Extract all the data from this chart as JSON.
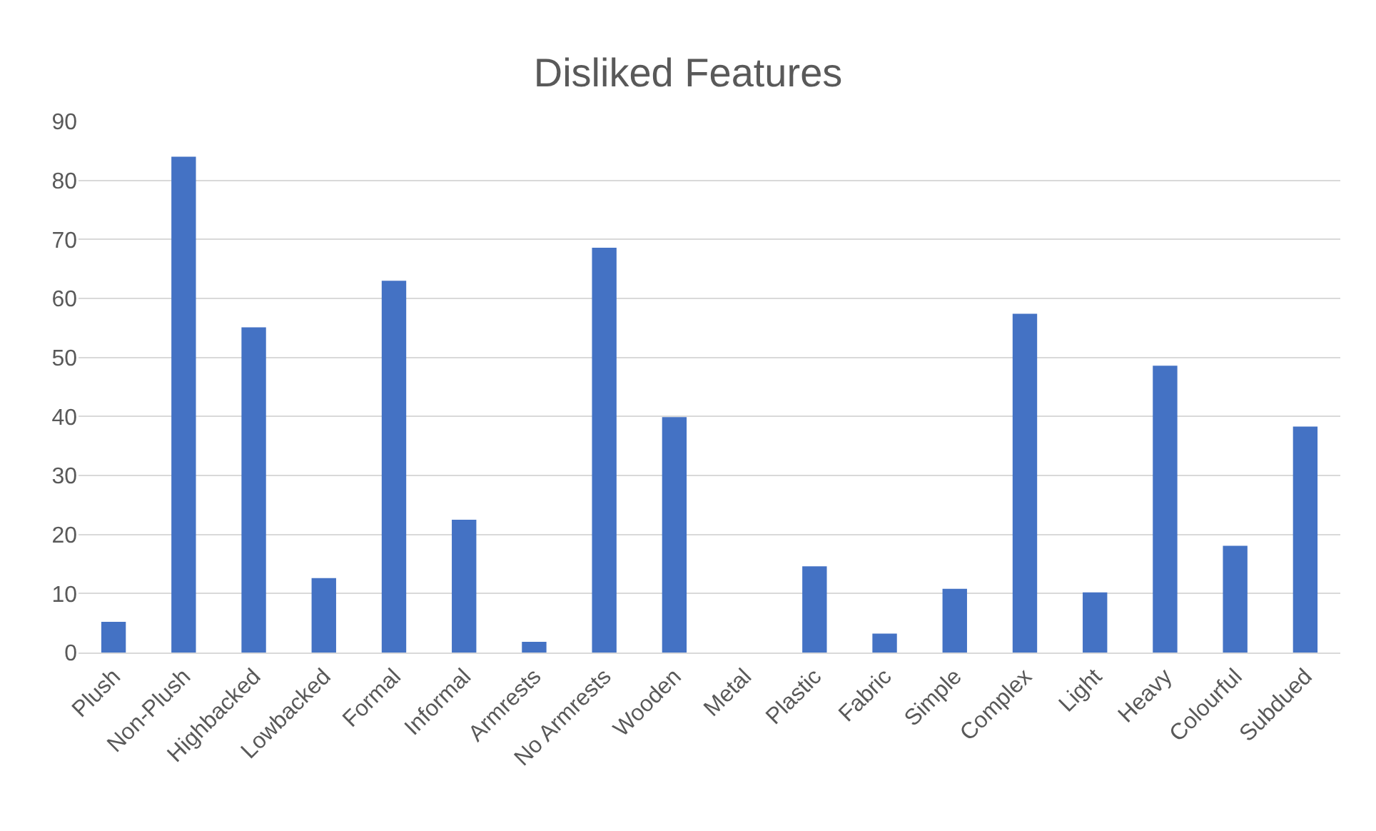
{
  "chart_data": {
    "type": "bar",
    "title": "Disliked Features",
    "categories": [
      "Plush",
      "Non-Plush",
      "Highbacked",
      "Lowbacked",
      "Formal",
      "Informal",
      "Armrests",
      "No Armrests",
      "Wooden",
      "Metal",
      "Plastic",
      "Fabric",
      "Simple",
      "Complex",
      "Light",
      "Heavy",
      "Colourful",
      "Subdued"
    ],
    "values": [
      5.2,
      84,
      55.1,
      12.6,
      63,
      22.5,
      1.8,
      68.6,
      39.9,
      0,
      14.6,
      3.2,
      10.8,
      57.4,
      10.2,
      48.6,
      18.1,
      38.3
    ],
    "color": "#4472c4",
    "ylim": [
      0,
      90
    ],
    "yticks": [
      0,
      10,
      20,
      30,
      40,
      50,
      60,
      70,
      80,
      90
    ],
    "grid": "y",
    "legend": false
  }
}
